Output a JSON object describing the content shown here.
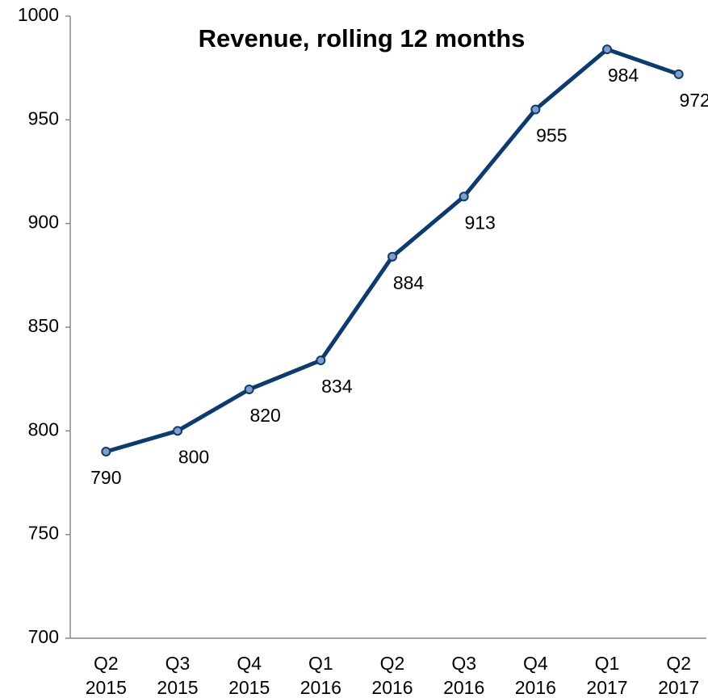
{
  "chart_data": {
    "type": "line",
    "title": "Revenue, rolling 12 months",
    "categories": [
      [
        "Q2",
        "2015"
      ],
      [
        "Q3",
        "2015"
      ],
      [
        "Q4",
        "2015"
      ],
      [
        "Q1",
        "2016"
      ],
      [
        "Q2",
        "2016"
      ],
      [
        "Q3",
        "2016"
      ],
      [
        "Q4",
        "2016"
      ],
      [
        "Q1",
        "2017"
      ],
      [
        "Q2",
        "2017"
      ]
    ],
    "values": [
      790,
      800,
      820,
      834,
      884,
      913,
      955,
      984,
      972
    ],
    "color": "#0d3b6e",
    "marker_color": "#7f9fc8",
    "ylim": [
      700,
      1000
    ],
    "yticks": [
      700,
      750,
      800,
      850,
      900,
      950,
      1000
    ],
    "grid": false
  }
}
